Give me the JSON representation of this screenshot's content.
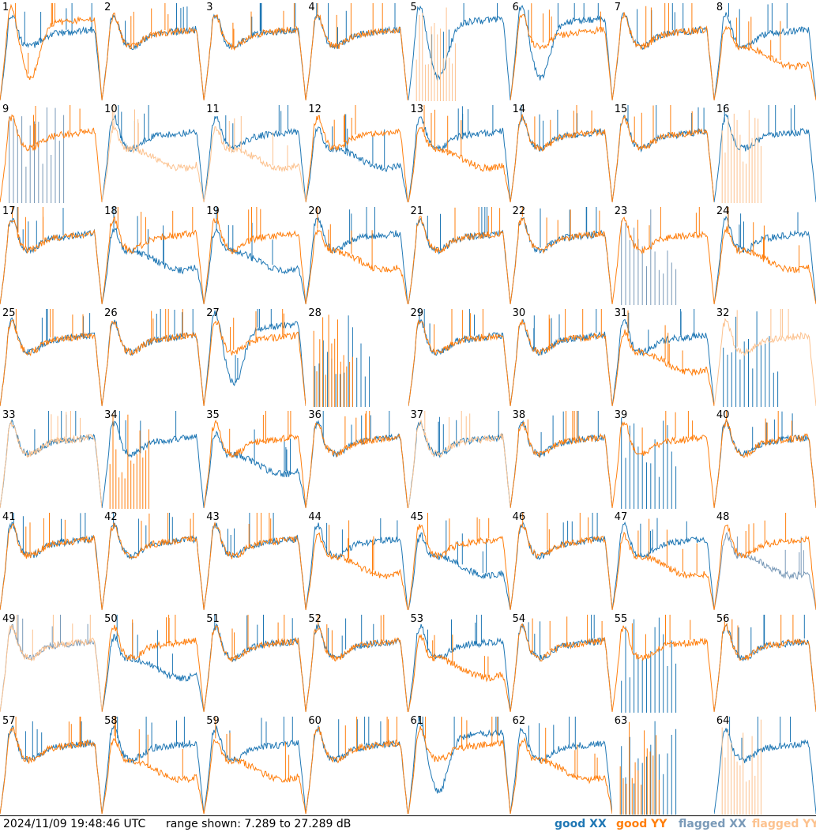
{
  "footer": {
    "timestamp": "2024/11/09 19:48:46 UTC",
    "range_text": "range shown: 7.289 to 27.289 dB"
  },
  "legend": [
    {
      "label": "good XX",
      "color": "#1f77b4"
    },
    {
      "label": "good YY",
      "color": "#ff7f0e"
    },
    {
      "label": "flagged XX",
      "color": "#7a9ab8"
    },
    {
      "label": "flagged YY",
      "color": "#fcc28f"
    }
  ],
  "chart_data": {
    "type": "line",
    "grid": {
      "rows": 8,
      "cols": 8
    },
    "ylim": [
      7.289,
      27.289
    ],
    "yunit": "dB",
    "tiles": [
      {
        "id": "1",
        "xx": "good",
        "yy": "good",
        "xx_shape": "normal",
        "yy_shape": "deep"
      },
      {
        "id": "2",
        "xx": "good",
        "yy": "good",
        "xx_shape": "normal",
        "yy_shape": "normal"
      },
      {
        "id": "3",
        "xx": "good",
        "yy": "good",
        "xx_shape": "normal",
        "yy_shape": "normal"
      },
      {
        "id": "4",
        "xx": "good",
        "yy": "good",
        "xx_shape": "normal",
        "yy_shape": "normal"
      },
      {
        "id": "5",
        "xx": "good",
        "yy": "flagged",
        "xx_shape": "deep",
        "yy_shape": "spikes"
      },
      {
        "id": "6",
        "xx": "good",
        "yy": "good",
        "xx_shape": "deep",
        "yy_shape": "normal"
      },
      {
        "id": "7",
        "xx": "good",
        "yy": "good",
        "xx_shape": "normal",
        "yy_shape": "normal"
      },
      {
        "id": "8",
        "xx": "good",
        "yy": "good",
        "xx_shape": "normal",
        "yy_shape": "low"
      },
      {
        "id": "9",
        "xx": "flagged",
        "yy": "good",
        "xx_shape": "spikes",
        "yy_shape": "normal"
      },
      {
        "id": "10",
        "xx": "good",
        "yy": "flagged",
        "xx_shape": "normal",
        "yy_shape": "low"
      },
      {
        "id": "11",
        "xx": "good",
        "yy": "flagged",
        "xx_shape": "normal",
        "yy_shape": "low"
      },
      {
        "id": "12",
        "xx": "good",
        "yy": "good",
        "xx_shape": "low",
        "yy_shape": "normal"
      },
      {
        "id": "13",
        "xx": "good",
        "yy": "good",
        "xx_shape": "normal",
        "yy_shape": "low"
      },
      {
        "id": "14",
        "xx": "good",
        "yy": "good",
        "xx_shape": "normal",
        "yy_shape": "normal"
      },
      {
        "id": "15",
        "xx": "good",
        "yy": "good",
        "xx_shape": "normal",
        "yy_shape": "normal"
      },
      {
        "id": "16",
        "xx": "good",
        "yy": "flagged",
        "xx_shape": "normal",
        "yy_shape": "spikes"
      },
      {
        "id": "17",
        "xx": "good",
        "yy": "good",
        "xx_shape": "normal",
        "yy_shape": "normal"
      },
      {
        "id": "18",
        "xx": "good",
        "yy": "good",
        "xx_shape": "low",
        "yy_shape": "normal"
      },
      {
        "id": "19",
        "xx": "good",
        "yy": "good",
        "xx_shape": "low",
        "yy_shape": "normal"
      },
      {
        "id": "20",
        "xx": "good",
        "yy": "good",
        "xx_shape": "normal",
        "yy_shape": "low"
      },
      {
        "id": "21",
        "xx": "good",
        "yy": "good",
        "xx_shape": "normal",
        "yy_shape": "normal"
      },
      {
        "id": "22",
        "xx": "good",
        "yy": "good",
        "xx_shape": "normal",
        "yy_shape": "normal"
      },
      {
        "id": "23",
        "xx": "flagged",
        "yy": "good",
        "xx_shape": "spikes",
        "yy_shape": "normal"
      },
      {
        "id": "24",
        "xx": "good",
        "yy": "good",
        "xx_shape": "normal",
        "yy_shape": "low"
      },
      {
        "id": "25",
        "xx": "good",
        "yy": "good",
        "xx_shape": "normal",
        "yy_shape": "normal"
      },
      {
        "id": "26",
        "xx": "good",
        "yy": "good",
        "xx_shape": "normal",
        "yy_shape": "normal"
      },
      {
        "id": "27",
        "xx": "good",
        "yy": "good",
        "xx_shape": "deep",
        "yy_shape": "normal"
      },
      {
        "id": "28",
        "xx": "good",
        "yy": "good",
        "xx_shape": "spikes",
        "yy_shape": "spikes"
      },
      {
        "id": "29",
        "xx": "good",
        "yy": "good",
        "xx_shape": "normal",
        "yy_shape": "normal"
      },
      {
        "id": "30",
        "xx": "good",
        "yy": "good",
        "xx_shape": "normal",
        "yy_shape": "normal"
      },
      {
        "id": "31",
        "xx": "good",
        "yy": "good",
        "xx_shape": "normal",
        "yy_shape": "low"
      },
      {
        "id": "32",
        "xx": "good",
        "yy": "flagged",
        "xx_shape": "spikes",
        "yy_shape": "normal"
      },
      {
        "id": "33",
        "xx": "good",
        "yy": "flagged",
        "xx_shape": "normal",
        "yy_shape": "normal"
      },
      {
        "id": "34",
        "xx": "good",
        "yy": "good",
        "xx_shape": "normal",
        "yy_shape": "spikes"
      },
      {
        "id": "35",
        "xx": "good",
        "yy": "good",
        "xx_shape": "low",
        "yy_shape": "normal"
      },
      {
        "id": "36",
        "xx": "good",
        "yy": "good",
        "xx_shape": "normal",
        "yy_shape": "normal"
      },
      {
        "id": "37",
        "xx": "good",
        "yy": "flagged",
        "xx_shape": "normal",
        "yy_shape": "normal"
      },
      {
        "id": "38",
        "xx": "good",
        "yy": "good",
        "xx_shape": "normal",
        "yy_shape": "normal"
      },
      {
        "id": "39",
        "xx": "good",
        "yy": "good",
        "xx_shape": "spikes",
        "yy_shape": "normal"
      },
      {
        "id": "40",
        "xx": "good",
        "yy": "good",
        "xx_shape": "normal",
        "yy_shape": "normal"
      },
      {
        "id": "41",
        "xx": "good",
        "yy": "good",
        "xx_shape": "normal",
        "yy_shape": "normal"
      },
      {
        "id": "42",
        "xx": "good",
        "yy": "good",
        "xx_shape": "normal",
        "yy_shape": "normal"
      },
      {
        "id": "43",
        "xx": "good",
        "yy": "good",
        "xx_shape": "normal",
        "yy_shape": "normal"
      },
      {
        "id": "44",
        "xx": "good",
        "yy": "good",
        "xx_shape": "normal",
        "yy_shape": "low"
      },
      {
        "id": "45",
        "xx": "good",
        "yy": "good",
        "xx_shape": "low",
        "yy_shape": "normal"
      },
      {
        "id": "46",
        "xx": "good",
        "yy": "good",
        "xx_shape": "normal",
        "yy_shape": "normal"
      },
      {
        "id": "47",
        "xx": "good",
        "yy": "good",
        "xx_shape": "normal",
        "yy_shape": "low"
      },
      {
        "id": "48",
        "xx": "flagged",
        "yy": "good",
        "xx_shape": "low",
        "yy_shape": "normal"
      },
      {
        "id": "49",
        "xx": "flagged",
        "yy": "flagged",
        "xx_shape": "normal",
        "yy_shape": "normal"
      },
      {
        "id": "50",
        "xx": "good",
        "yy": "good",
        "xx_shape": "low",
        "yy_shape": "normal"
      },
      {
        "id": "51",
        "xx": "good",
        "yy": "good",
        "xx_shape": "normal",
        "yy_shape": "normal"
      },
      {
        "id": "52",
        "xx": "good",
        "yy": "good",
        "xx_shape": "normal",
        "yy_shape": "normal"
      },
      {
        "id": "53",
        "xx": "good",
        "yy": "good",
        "xx_shape": "normal",
        "yy_shape": "low"
      },
      {
        "id": "54",
        "xx": "good",
        "yy": "good",
        "xx_shape": "normal",
        "yy_shape": "normal"
      },
      {
        "id": "55",
        "xx": "good",
        "yy": "good",
        "xx_shape": "spikes",
        "yy_shape": "normal"
      },
      {
        "id": "56",
        "xx": "good",
        "yy": "good",
        "xx_shape": "normal",
        "yy_shape": "normal"
      },
      {
        "id": "57",
        "xx": "good",
        "yy": "good",
        "xx_shape": "normal",
        "yy_shape": "normal"
      },
      {
        "id": "58",
        "xx": "good",
        "yy": "good",
        "xx_shape": "normal",
        "yy_shape": "low"
      },
      {
        "id": "59",
        "xx": "good",
        "yy": "good",
        "xx_shape": "normal",
        "yy_shape": "low"
      },
      {
        "id": "60",
        "xx": "good",
        "yy": "good",
        "xx_shape": "normal",
        "yy_shape": "normal"
      },
      {
        "id": "61",
        "xx": "good",
        "yy": "good",
        "xx_shape": "deep",
        "yy_shape": "normal"
      },
      {
        "id": "62",
        "xx": "good",
        "yy": "good",
        "xx_shape": "normal",
        "yy_shape": "low"
      },
      {
        "id": "63",
        "xx": "good",
        "yy": "good",
        "xx_shape": "spikes",
        "yy_shape": "spikes"
      },
      {
        "id": "64",
        "xx": "good",
        "yy": "flagged",
        "xx_shape": "normal",
        "yy_shape": "spikes"
      }
    ]
  }
}
